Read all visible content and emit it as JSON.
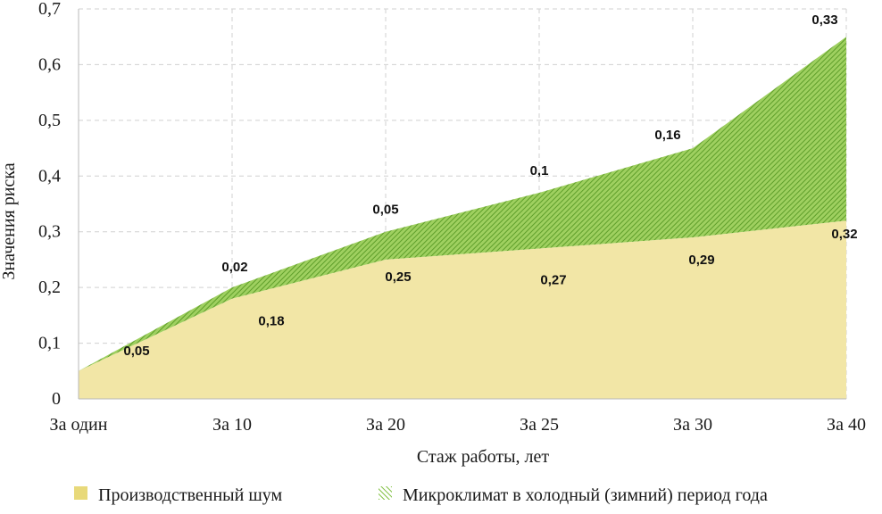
{
  "chart_data": {
    "type": "area",
    "stacked": true,
    "categories": [
      "За один",
      "За 10",
      "За 20",
      "За  25",
      "За 30",
      "За 40"
    ],
    "xlabel": "Стаж работы, лет",
    "ylabel": "Значения риска",
    "ylim": [
      0,
      0.7
    ],
    "yticks": [
      "0",
      "0,1",
      "0,2",
      "0,3",
      "0,4",
      "0,5",
      "0,6",
      "0,7"
    ],
    "grid": true,
    "legend_position": "bottom",
    "series": [
      {
        "name": "Производственный шум",
        "values": [
          0.05,
          0.18,
          0.25,
          0.27,
          0.29,
          0.32
        ],
        "labels": [
          "0,05",
          "0,18",
          "0,25",
          "0,27",
          "0,29",
          "0,32"
        ],
        "color": "#f2e6a6"
      },
      {
        "name": "Микроклимат в холодный (зимний) период года",
        "values": [
          0.0,
          0.02,
          0.05,
          0.1,
          0.16,
          0.33
        ],
        "labels": [
          "",
          "0,02",
          "0,05",
          "0,1",
          "0,16",
          "0,33"
        ],
        "color": "#7fbf3f"
      }
    ]
  }
}
